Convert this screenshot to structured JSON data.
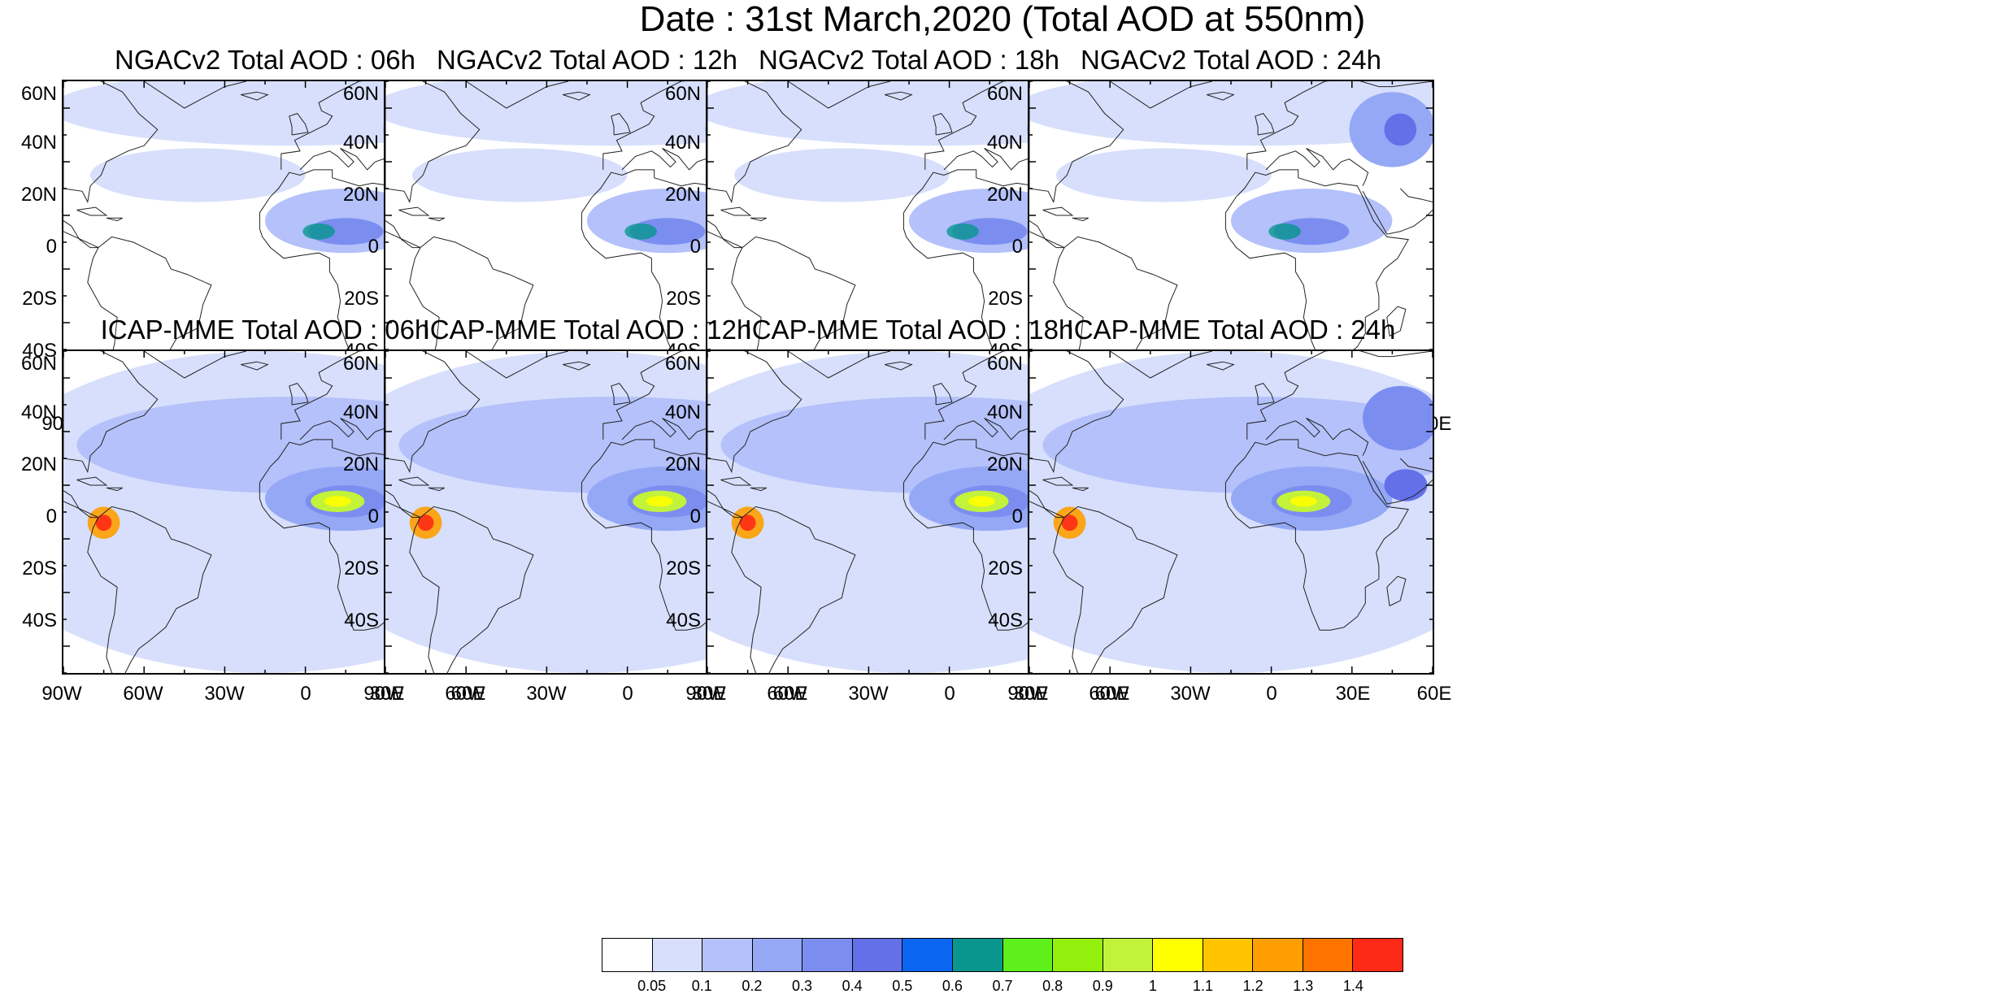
{
  "figure": {
    "title": "Date : 31st March,2020 (Total AOD at 550nm)"
  },
  "axes": {
    "lat_labels": [
      "60N",
      "40N",
      "20N",
      "0",
      "20S",
      "40S"
    ],
    "lon_labels": [
      "90W",
      "60W",
      "30W",
      "0",
      "30E",
      "60E"
    ],
    "lat_range": [
      -50,
      70
    ],
    "lon_range": [
      -90,
      60
    ]
  },
  "panels": [
    {
      "title": "NGACv2 Total AOD : 06h",
      "model": "NGACv2",
      "forecast_hour": 6
    },
    {
      "title": "NGACv2 Total AOD : 12h",
      "model": "NGACv2",
      "forecast_hour": 12
    },
    {
      "title": "NGACv2 Total AOD : 18h",
      "model": "NGACv2",
      "forecast_hour": 18
    },
    {
      "title": "NGACv2 Total AOD : 24h",
      "model": "NGACv2",
      "forecast_hour": 24
    },
    {
      "title": "ICAP-MME Total AOD : 06h",
      "model": "ICAP-MME",
      "forecast_hour": 6
    },
    {
      "title": "ICAP-MME Total AOD : 12h",
      "model": "ICAP-MME",
      "forecast_hour": 12
    },
    {
      "title": "ICAP-MME Total AOD : 18h",
      "model": "ICAP-MME",
      "forecast_hour": 18
    },
    {
      "title": "ICAP-MME Total AOD : 24h",
      "model": "ICAP-MME",
      "forecast_hour": 24
    }
  ],
  "colorbar": {
    "labels": [
      "0.05",
      "0.1",
      "0.2",
      "0.3",
      "0.4",
      "0.5",
      "0.6",
      "0.7",
      "0.8",
      "0.9",
      "1",
      "1.1",
      "1.2",
      "1.3",
      "1.4"
    ],
    "colors": [
      "#ffffff",
      "#d7dffc",
      "#b4c1fa",
      "#94a8f6",
      "#7b8ef0",
      "#6370e8",
      "#0a66f0",
      "#08968f",
      "#5ef01a",
      "#93f00c",
      "#c2f33a",
      "#ffff00",
      "#ffc400",
      "#ff9e00",
      "#ff7300",
      "#ff2a16"
    ]
  }
}
